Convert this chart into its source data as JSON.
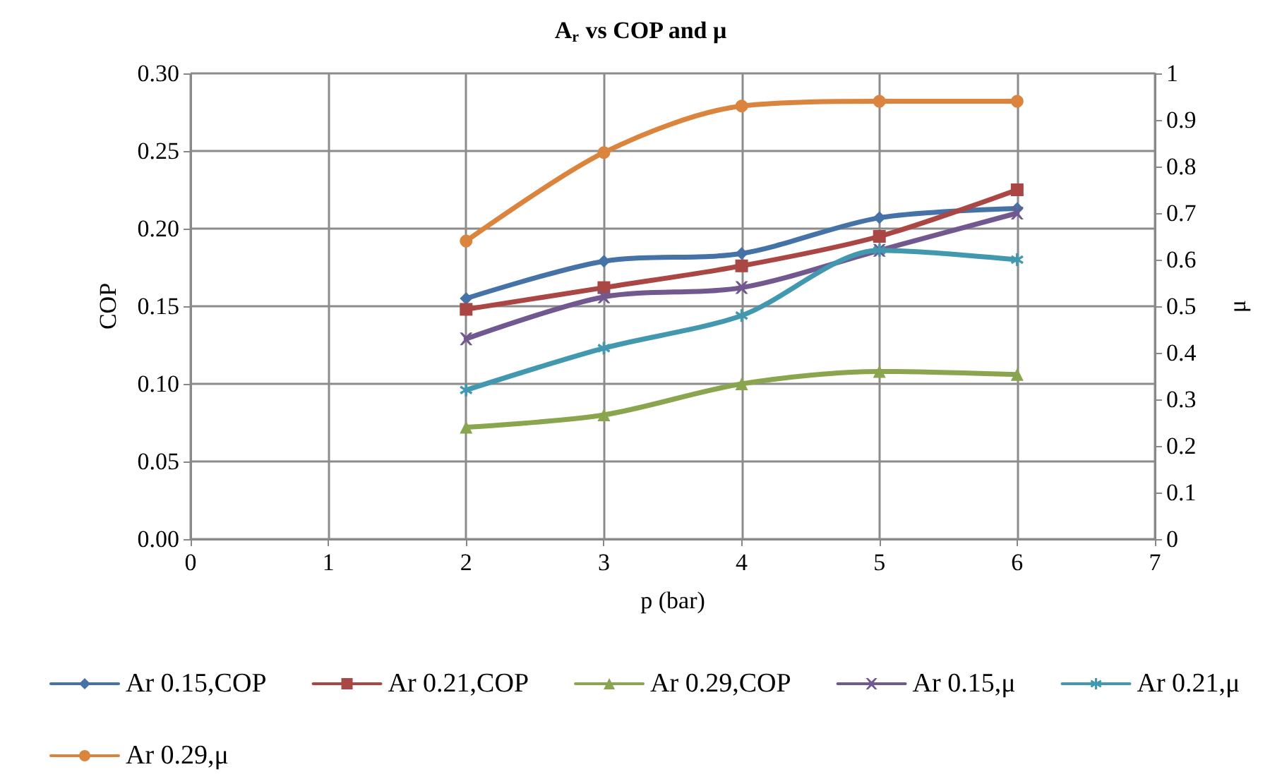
{
  "chart_data": {
    "type": "line",
    "title": "A$_{r}$ vs COP and μ",
    "xlabel": "p (bar)",
    "ylabel": "COP",
    "y2label": "μ",
    "x": [
      2,
      3,
      4,
      5,
      6
    ],
    "series": [
      {
        "name": "Ar 0.15,COP",
        "color": "#4572a7",
        "marker": "diamond",
        "values": [
          0.155,
          0.179,
          0.184,
          0.207,
          0.213
        ]
      },
      {
        "name": "Ar 0.21,COP",
        "color": "#aa4643",
        "marker": "square",
        "values": [
          0.148,
          0.162,
          0.176,
          0.195,
          0.225
        ]
      },
      {
        "name": "Ar 0.29,COP",
        "color": "#89a54e",
        "marker": "triangle",
        "values": [
          0.072,
          0.08,
          0.1,
          0.108,
          0.106
        ]
      },
      {
        "name": "Ar 0.15,μ",
        "color": "#71588f",
        "marker": "cross",
        "axis": "y2",
        "values": [
          0.43,
          0.52,
          0.54,
          0.62,
          0.7
        ]
      },
      {
        "name": "Ar 0.21,μ",
        "color": "#4198af",
        "marker": "star",
        "axis": "y2",
        "values": [
          0.32,
          0.41,
          0.48,
          0.62,
          0.6
        ]
      },
      {
        "name": "Ar 0.29,μ",
        "color": "#db843d",
        "marker": "circle",
        "axis": "y2",
        "values": [
          0.64,
          0.83,
          0.93,
          0.94,
          0.94
        ]
      }
    ],
    "xlim": [
      0,
      7
    ],
    "xticks": [
      0,
      1,
      2,
      3,
      4,
      5,
      6,
      7
    ],
    "ylim": [
      0,
      0.3
    ],
    "yticks": [
      {
        "value": 0,
        "label": "0.00"
      },
      {
        "value": 0.05,
        "label": "0.05"
      },
      {
        "value": 0.1,
        "label": "0.10"
      },
      {
        "value": 0.15,
        "label": "0.15"
      },
      {
        "value": 0.2,
        "label": "0.20"
      },
      {
        "value": 0.25,
        "label": "0.25"
      },
      {
        "value": 0.3,
        "label": "0.30"
      }
    ],
    "y2lim": [
      0,
      1
    ],
    "y2ticks": [
      0,
      0.1,
      0.2,
      0.3,
      0.4,
      0.5,
      0.6,
      0.7,
      0.8,
      0.9,
      1
    ],
    "grid": true,
    "legend": "bottom",
    "line_style": "solid"
  }
}
